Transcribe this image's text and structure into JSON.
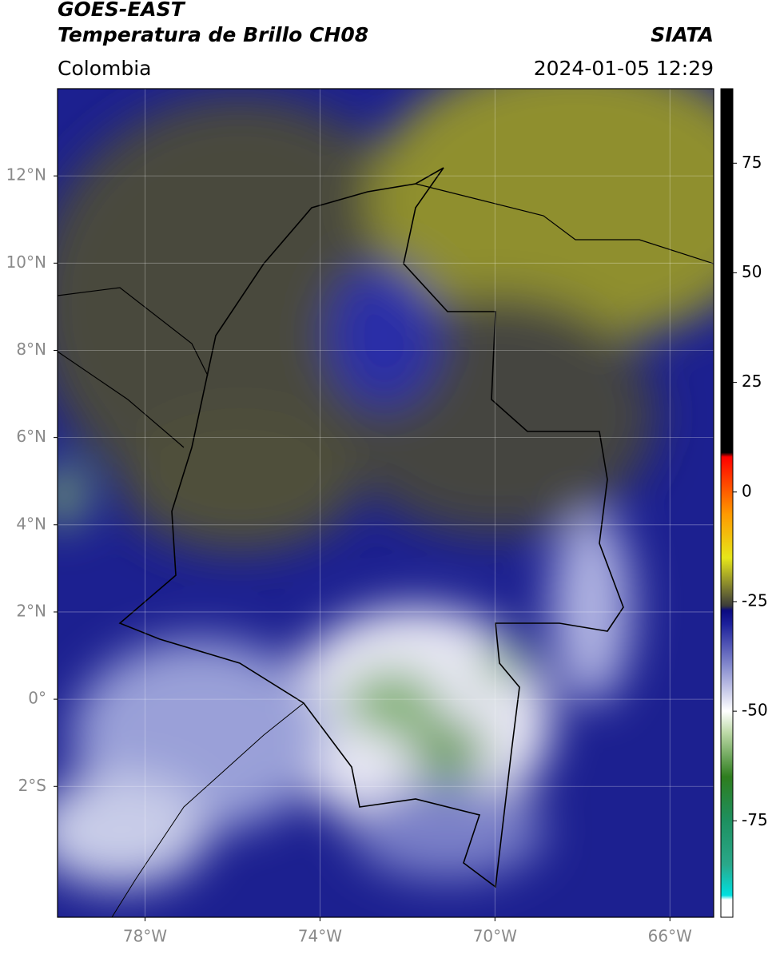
{
  "header": {
    "title": "GOES-EAST",
    "subtitle": "Temperatura de Brillo CH08",
    "brand": "SIATA",
    "region": "Colombia",
    "datetime": "2024-01-05 12:29"
  },
  "map": {
    "xlim": [
      -80,
      -65
    ],
    "ylim": [
      -5,
      14
    ],
    "grid": true,
    "xticks": [
      {
        "value": -78,
        "label": "78°W"
      },
      {
        "value": -74,
        "label": "74°W"
      },
      {
        "value": -70,
        "label": "70°W"
      },
      {
        "value": -66,
        "label": "66°W"
      }
    ],
    "yticks": [
      {
        "value": 12,
        "label": "12°N"
      },
      {
        "value": 10,
        "label": "10°N"
      },
      {
        "value": 8,
        "label": "8°N"
      },
      {
        "value": 6,
        "label": "6°N"
      },
      {
        "value": 4,
        "label": "4°N"
      },
      {
        "value": 2,
        "label": "2°N"
      },
      {
        "value": 0,
        "label": "0°"
      },
      {
        "value": -2,
        "label": "2°S"
      }
    ]
  },
  "colorbar": {
    "lim": [
      -97,
      92
    ],
    "ticks": [
      75,
      50,
      25,
      0,
      -25,
      -50,
      -75
    ],
    "stops": [
      {
        "value": -97,
        "color": "#ffffff"
      },
      {
        "value": -93,
        "color": "#ffffff"
      },
      {
        "value": -92,
        "color": "#00e0e0"
      },
      {
        "value": -85,
        "color": "#2aa88a"
      },
      {
        "value": -75,
        "color": "#1e9060"
      },
      {
        "value": -65,
        "color": "#2e7d1e"
      },
      {
        "value": -55,
        "color": "#bcd9a6"
      },
      {
        "value": -50,
        "color": "#ffffff"
      },
      {
        "value": -40,
        "color": "#8a8fd0"
      },
      {
        "value": -30,
        "color": "#1c1f9a"
      },
      {
        "value": -27,
        "color": "#0a0a80"
      },
      {
        "value": -26,
        "color": "#3a3a3a"
      },
      {
        "value": -20,
        "color": "#9a9a2a"
      },
      {
        "value": -15,
        "color": "#e6e61a"
      },
      {
        "value": -5,
        "color": "#ff9900"
      },
      {
        "value": 8,
        "color": "#ff0000"
      },
      {
        "value": 9,
        "color": "#000000"
      },
      {
        "value": 92,
        "color": "#000000"
      }
    ]
  }
}
